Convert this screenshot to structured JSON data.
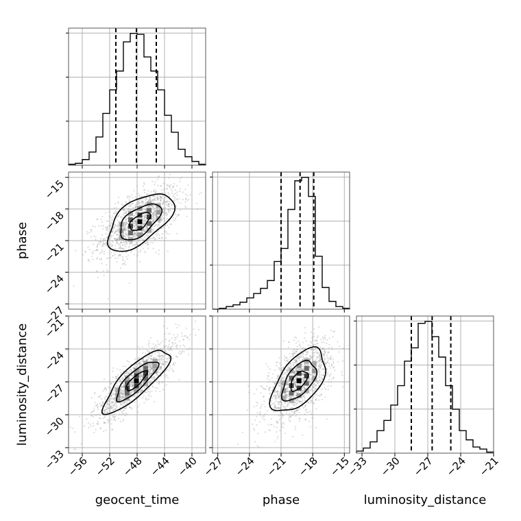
{
  "chart_data": {
    "type": "corner",
    "parameters": [
      "geocent_time",
      "phase",
      "luminosity_distance"
    ],
    "axes": {
      "geocent_time": {
        "range": [
          -58,
          -38
        ],
        "ticks": [
          -56,
          -52,
          -48,
          -44,
          -40
        ],
        "tick_labels": [
          "−56",
          "−52",
          "−48",
          "−44",
          "−40"
        ]
      },
      "phase": {
        "range": [
          -27.5,
          -14.5
        ],
        "ticks": [
          -27,
          -24,
          -21,
          -18,
          -15
        ],
        "tick_labels": [
          "−27",
          "−24",
          "−21",
          "−18",
          "−15"
        ]
      },
      "luminosity_distance": {
        "range": [
          -33.5,
          -21
        ],
        "ticks": [
          -33,
          -30,
          -27,
          -24,
          -21
        ],
        "tick_labels": [
          "−33",
          "−30",
          "−27",
          "−24",
          "−21"
        ]
      }
    },
    "histograms": [
      {
        "parameter": "geocent_time",
        "bin_edges": [
          -58,
          -57,
          -56,
          -55,
          -54,
          -53,
          -52,
          -51,
          -50,
          -49,
          -48,
          -47,
          -46,
          -45,
          -44,
          -43,
          -42,
          -41,
          -40,
          -39,
          -38
        ],
        "counts": [
          1,
          2,
          6,
          14,
          30,
          55,
          80,
          100,
          131,
          140,
          139,
          115,
          100,
          80,
          53,
          35,
          17,
          9,
          4,
          1
        ],
        "quantiles": [
          -51.1,
          -48.1,
          -45.2
        ]
      },
      {
        "parameter": "phase",
        "bin_edges": [
          -27.5,
          -26.85,
          -26.2,
          -25.55,
          -24.9,
          -24.25,
          -23.6,
          -22.95,
          -22.3,
          -21.65,
          -21,
          -20.35,
          -19.7,
          -19.05,
          -18.4,
          -17.75,
          -17.1,
          -16.45,
          -15.8,
          -15.15,
          -14.5
        ],
        "counts": [
          0,
          1,
          3,
          5,
          8,
          13,
          18,
          24,
          33,
          55,
          70,
          115,
          148,
          152,
          130,
          61,
          25,
          9,
          3,
          1
        ],
        "quantiles": [
          -21.0,
          -19.2,
          -17.9
        ]
      },
      {
        "parameter": "luminosity_distance",
        "bin_edges": [
          -33.5,
          -32.875,
          -32.25,
          -31.625,
          -31,
          -30.375,
          -29.75,
          -29.125,
          -28.5,
          -27.875,
          -27.25,
          -26.625,
          -26,
          -25.375,
          -24.75,
          -24.125,
          -23.5,
          -22.875,
          -22.25,
          -21.625,
          -21
        ],
        "counts": [
          2,
          5,
          11,
          22,
          32,
          47,
          66,
          90,
          103,
          127,
          129,
          114,
          94,
          66,
          43,
          22,
          13,
          6,
          4,
          1
        ],
        "quantiles": [
          -28.5,
          -26.6,
          -24.9
        ]
      }
    ],
    "scatter_2d": [
      {
        "x": "geocent_time",
        "y": "phase",
        "peak": [
          -47.7,
          -19.1
        ],
        "correlation": "positive"
      },
      {
        "x": "geocent_time",
        "y": "luminosity_distance",
        "peak": [
          -48.1,
          -26.9
        ],
        "correlation": "positive"
      },
      {
        "x": "phase",
        "y": "luminosity_distance",
        "peak": [
          -19.1,
          -26.9
        ],
        "correlation": "positive"
      }
    ],
    "xlabels": [
      "geocent_time",
      "phase",
      "luminosity_distance"
    ],
    "ylabels": [
      "",
      "phase",
      "luminosity_distance"
    ]
  }
}
